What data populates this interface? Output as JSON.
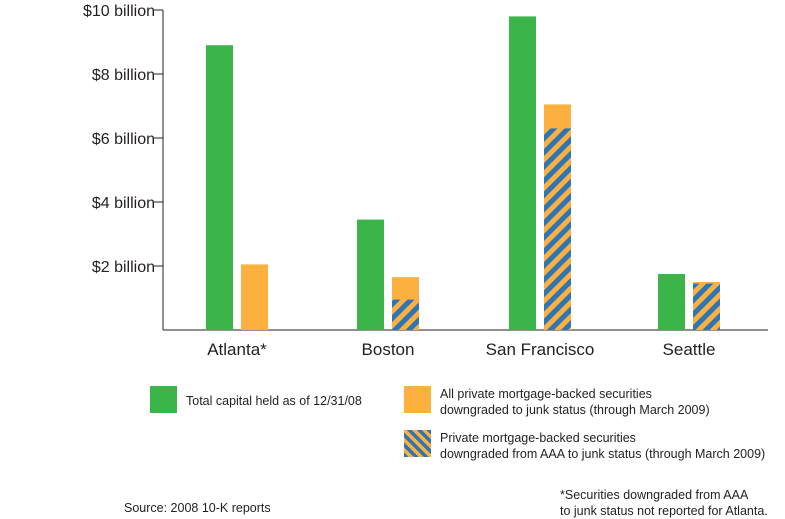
{
  "chart_data": {
    "type": "bar",
    "categories": [
      "Atlanta*",
      "Boston",
      "San Francisco",
      "Seattle"
    ],
    "ylim": [
      0,
      10
    ],
    "yticks": [
      {
        "value": 2,
        "label": "$2 billion"
      },
      {
        "value": 4,
        "label": "$4 billion"
      },
      {
        "value": 6,
        "label": "$6 billion"
      },
      {
        "value": 8,
        "label": "$8 billion"
      },
      {
        "value": 10,
        "label": "$10 billion"
      }
    ],
    "series": [
      {
        "name": "Total capital held as of 12/31/08",
        "color": "#3bb54a",
        "values": [
          8.9,
          3.45,
          9.8,
          1.75
        ]
      },
      {
        "name": "All private mortgage-backed securities downgraded to junk status (through March 2009)",
        "color": "#fbb040",
        "values": [
          2.05,
          1.65,
          7.05,
          1.5
        ]
      },
      {
        "name": "Private mortgage-backed securities downgraded from AAA to junk status (through March 2009)",
        "color": "#2e75b6",
        "pattern": "striped-blue-orange",
        "values": [
          null,
          0.95,
          6.3,
          1.45
        ]
      }
    ],
    "legend": {
      "total": "Total capital held as of 12/31/08",
      "all_line1": "All private mortgage-backed securities",
      "all_line2": "downgraded to junk status (through March 2009)",
      "aaa_line1": "Private mortgage-backed securities",
      "aaa_line2": "downgraded from AAA to junk status (through March 2009)"
    }
  },
  "source": "Source: 2008 10-K reports",
  "footnote_line1": "*Securities downgraded from AAA",
  "footnote_line2": "to junk status not reported for Atlanta."
}
